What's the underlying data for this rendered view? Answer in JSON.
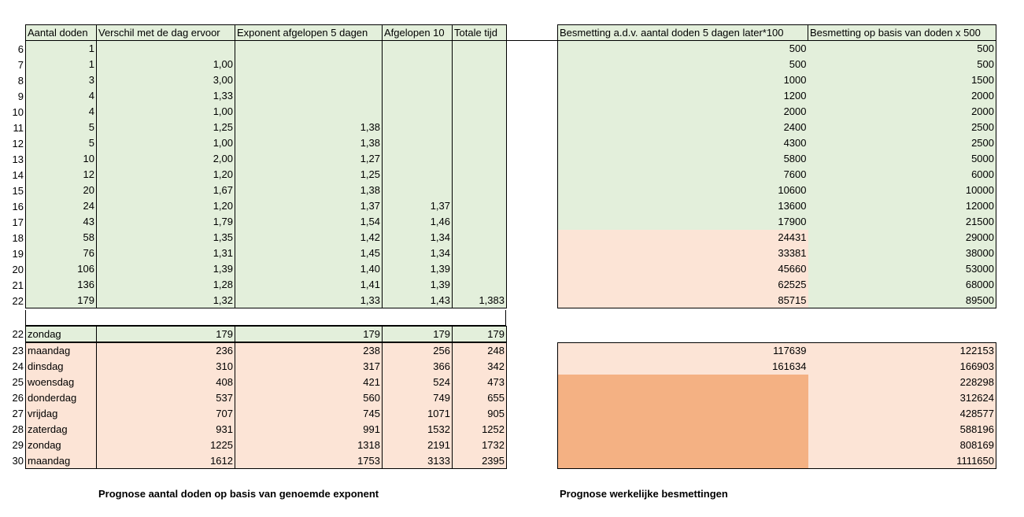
{
  "left_headers": [
    "Aantal doden",
    "Verschil met de dag ervoor",
    "Exponent afgelopen 5 dagen",
    "Afgelopen 10",
    "Totale tijd"
  ],
  "right_headers": [
    "Besmetting a.d.v. aantal doden 5 dagen later*100",
    "Besmetting op basis van doden x 500"
  ],
  "left_rows": [
    {
      "n": "6",
      "doden": "1",
      "verschil": "",
      "exp5": "",
      "afg10": "",
      "totaal": ""
    },
    {
      "n": "7",
      "doden": "1",
      "verschil": "1,00",
      "exp5": "",
      "afg10": "",
      "totaal": ""
    },
    {
      "n": "8",
      "doden": "3",
      "verschil": "3,00",
      "exp5": "",
      "afg10": "",
      "totaal": ""
    },
    {
      "n": "9",
      "doden": "4",
      "verschil": "1,33",
      "exp5": "",
      "afg10": "",
      "totaal": ""
    },
    {
      "n": "10",
      "doden": "4",
      "verschil": "1,00",
      "exp5": "",
      "afg10": "",
      "totaal": ""
    },
    {
      "n": "11",
      "doden": "5",
      "verschil": "1,25",
      "exp5": "1,38",
      "afg10": "",
      "totaal": ""
    },
    {
      "n": "12",
      "doden": "5",
      "verschil": "1,00",
      "exp5": "1,38",
      "afg10": "",
      "totaal": ""
    },
    {
      "n": "13",
      "doden": "10",
      "verschil": "2,00",
      "exp5": "1,27",
      "afg10": "",
      "totaal": ""
    },
    {
      "n": "14",
      "doden": "12",
      "verschil": "1,20",
      "exp5": "1,25",
      "afg10": "",
      "totaal": ""
    },
    {
      "n": "15",
      "doden": "20",
      "verschil": "1,67",
      "exp5": "1,38",
      "afg10": "",
      "totaal": ""
    },
    {
      "n": "16",
      "doden": "24",
      "verschil": "1,20",
      "exp5": "1,37",
      "afg10": "1,37",
      "totaal": ""
    },
    {
      "n": "17",
      "doden": "43",
      "verschil": "1,79",
      "exp5": "1,54",
      "afg10": "1,46",
      "totaal": ""
    },
    {
      "n": "18",
      "doden": "58",
      "verschil": "1,35",
      "exp5": "1,42",
      "afg10": "1,34",
      "totaal": ""
    },
    {
      "n": "19",
      "doden": "76",
      "verschil": "1,31",
      "exp5": "1,45",
      "afg10": "1,34",
      "totaal": ""
    },
    {
      "n": "20",
      "doden": "106",
      "verschil": "1,39",
      "exp5": "1,40",
      "afg10": "1,39",
      "totaal": ""
    },
    {
      "n": "21",
      "doden": "136",
      "verschil": "1,28",
      "exp5": "1,41",
      "afg10": "1,39",
      "totaal": ""
    },
    {
      "n": "22",
      "doden": "179",
      "verschil": "1,32",
      "exp5": "1,33",
      "afg10": "1,43",
      "totaal": "1,383"
    }
  ],
  "right_rows": [
    {
      "a": "500",
      "b": "500",
      "a_color": "g"
    },
    {
      "a": "500",
      "b": "500",
      "a_color": "g"
    },
    {
      "a": "1000",
      "b": "1500",
      "a_color": "g"
    },
    {
      "a": "1200",
      "b": "2000",
      "a_color": "g"
    },
    {
      "a": "2000",
      "b": "2000",
      "a_color": "g"
    },
    {
      "a": "2400",
      "b": "2500",
      "a_color": "g"
    },
    {
      "a": "4300",
      "b": "2500",
      "a_color": "g"
    },
    {
      "a": "5800",
      "b": "5000",
      "a_color": "g"
    },
    {
      "a": "7600",
      "b": "6000",
      "a_color": "g"
    },
    {
      "a": "10600",
      "b": "10000",
      "a_color": "g"
    },
    {
      "a": "13600",
      "b": "12000",
      "a_color": "g"
    },
    {
      "a": "17900",
      "b": "21500",
      "a_color": "g"
    },
    {
      "a": "24431",
      "b": "29000",
      "a_color": "p"
    },
    {
      "a": "33381",
      "b": "38000",
      "a_color": "p"
    },
    {
      "a": "45660",
      "b": "53000",
      "a_color": "p"
    },
    {
      "a": "62525",
      "b": "68000",
      "a_color": "p"
    },
    {
      "a": "85715",
      "b": "89500",
      "a_color": "p"
    }
  ],
  "sunday_row": {
    "n": "22",
    "dag": "zondag",
    "v1": "179",
    "v2": "179",
    "v3": "179",
    "v4": "179"
  },
  "forecast_rows": [
    {
      "n": "23",
      "dag": "maandag",
      "v1": "236",
      "v2": "238",
      "v3": "256",
      "v4": "248",
      "ra": "117639",
      "rb": "122153",
      "ra_color": "p"
    },
    {
      "n": "24",
      "dag": "dinsdag",
      "v1": "310",
      "v2": "317",
      "v3": "366",
      "v4": "342",
      "ra": "161634",
      "rb": "166903",
      "ra_color": "p"
    },
    {
      "n": "25",
      "dag": "woensdag",
      "v1": "408",
      "v2": "421",
      "v3": "524",
      "v4": "473",
      "ra": "",
      "rb": "228298",
      "ra_color": "o"
    },
    {
      "n": "26",
      "dag": "donderdag",
      "v1": "537",
      "v2": "560",
      "v3": "749",
      "v4": "655",
      "ra": "",
      "rb": "312624",
      "ra_color": "o"
    },
    {
      "n": "27",
      "dag": "vrijdag",
      "v1": "707",
      "v2": "745",
      "v3": "1071",
      "v4": "905",
      "ra": "",
      "rb": "428577",
      "ra_color": "o"
    },
    {
      "n": "28",
      "dag": "zaterdag",
      "v1": "931",
      "v2": "991",
      "v3": "1532",
      "v4": "1252",
      "ra": "",
      "rb": "588196",
      "ra_color": "o"
    },
    {
      "n": "29",
      "dag": "zondag",
      "v1": "1225",
      "v2": "1318",
      "v3": "2191",
      "v4": "1732",
      "ra": "",
      "rb": "808169",
      "ra_color": "o"
    },
    {
      "n": "30",
      "dag": "maandag",
      "v1": "1612",
      "v2": "1753",
      "v3": "3133",
      "v4": "2395",
      "ra": "",
      "rb": "1111650",
      "ra_color": "o"
    }
  ],
  "captions": {
    "left": "Prognose aantal doden op basis van genoemde exponent",
    "right": "Prognose werkelijke besmettingen"
  },
  "colors": {
    "green": "#e3efdb",
    "peach": "#fce4d6",
    "orange": "#f4b183"
  }
}
